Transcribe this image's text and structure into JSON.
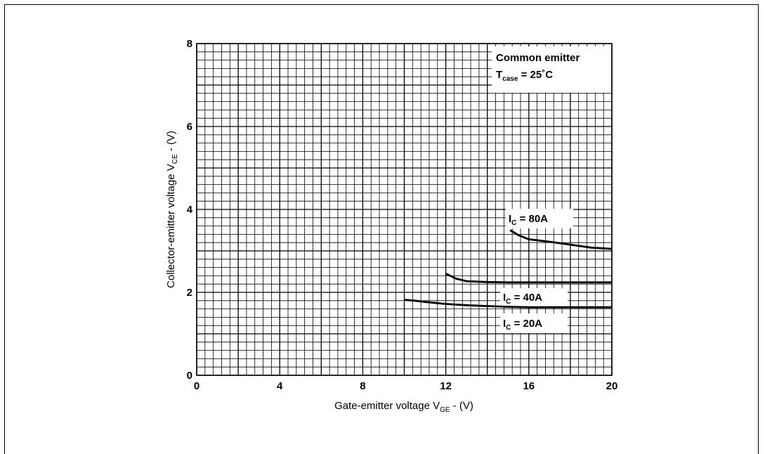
{
  "chart_data": {
    "type": "line",
    "xlabel_main": "Gate-emitter voltage V",
    "xlabel_sub": "GE",
    "xlabel_unit": " - (V)",
    "ylabel_main": "Collector-emitter voltage V",
    "ylabel_sub": "CE",
    "ylabel_unit": " - (V)",
    "xlim": [
      0,
      20
    ],
    "ylim": [
      0,
      8
    ],
    "xticks": [
      "0",
      "4",
      "8",
      "12",
      "16",
      "20"
    ],
    "yticks": [
      "0",
      "2",
      "4",
      "6",
      "8"
    ],
    "grid": true,
    "legend_box": {
      "line1": "Common emitter",
      "line2_main": "T",
      "line2_sub": "case",
      "line2_rest": " = 25˚C"
    },
    "series": [
      {
        "name": "I_C = 80A",
        "label_main": "I",
        "label_sub": "C",
        "label_rest": " = 80A",
        "x": [
          15.1,
          15.5,
          16.0,
          17.0,
          18.0,
          19.0,
          20.0
        ],
        "y": [
          3.5,
          3.38,
          3.28,
          3.22,
          3.15,
          3.08,
          3.05
        ]
      },
      {
        "name": "I_C = 40A",
        "label_main": "I",
        "label_sub": "C",
        "label_rest": " = 40A",
        "x": [
          12.0,
          12.5,
          13.0,
          14.0,
          15.0,
          16.0,
          18.0,
          20.0
        ],
        "y": [
          2.45,
          2.33,
          2.27,
          2.25,
          2.24,
          2.24,
          2.24,
          2.24
        ]
      },
      {
        "name": "I_C = 20A",
        "label_main": "I",
        "label_sub": "C",
        "label_rest": " = 20A",
        "x": [
          10.0,
          10.5,
          11.0,
          12.0,
          13.0,
          14.0,
          15.0,
          16.0,
          18.0,
          20.0
        ],
        "y": [
          1.82,
          1.8,
          1.77,
          1.72,
          1.69,
          1.67,
          1.65,
          1.64,
          1.64,
          1.64
        ]
      }
    ]
  }
}
